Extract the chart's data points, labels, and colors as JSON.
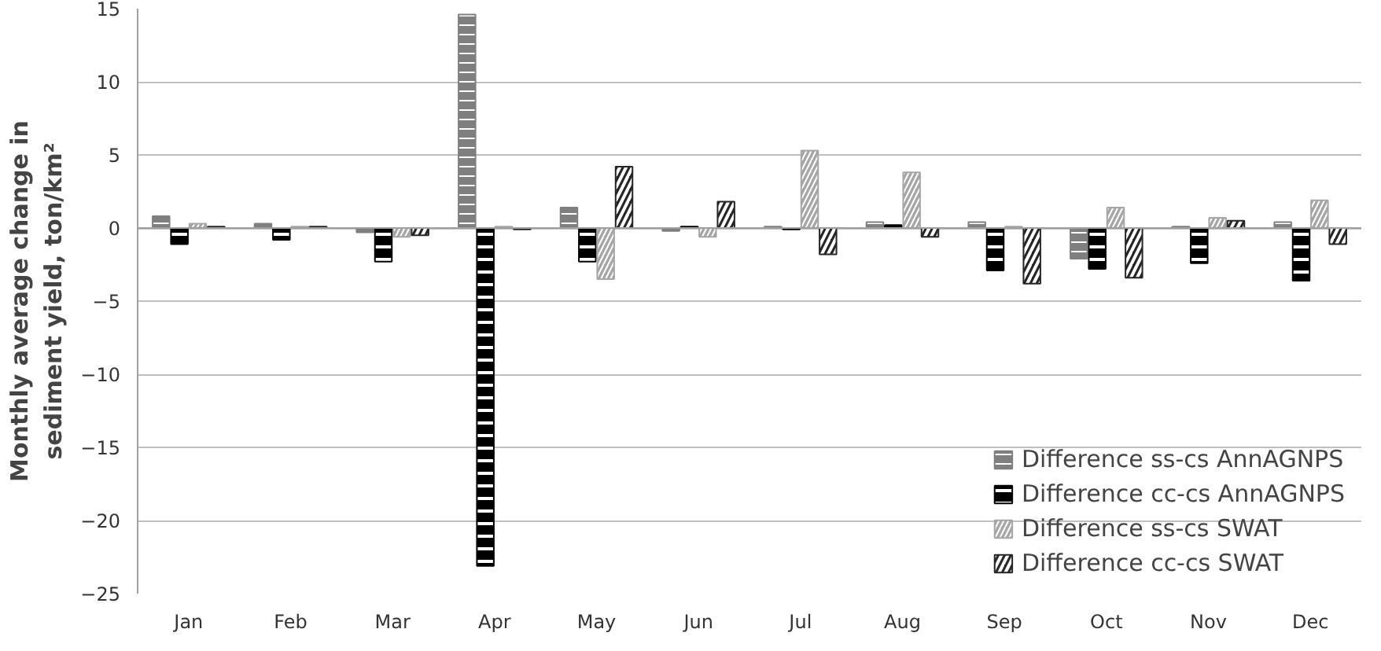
{
  "chart_data": {
    "type": "bar",
    "ylabel": "Monthly average change in\nsediment yield, ton/km²",
    "categories": [
      "Jan",
      "Feb",
      "Mar",
      "Apr",
      "May",
      "Jun",
      "Jul",
      "Aug",
      "Sep",
      "Oct",
      "Nov",
      "Dec"
    ],
    "series": [
      {
        "name": "Difference ss-cs AnnAGNPS",
        "color": "#7f7f7f",
        "values": [
          0.8,
          0.3,
          -0.3,
          14.6,
          1.4,
          -0.2,
          0.1,
          0.4,
          0.4,
          -2.1,
          0.1,
          0.4
        ]
      },
      {
        "name": "Difference cc-cs AnnAGNPS",
        "color": "#000000",
        "values": [
          -1.1,
          -0.8,
          -2.3,
          -23.1,
          -2.3,
          0.1,
          -0.1,
          0.2,
          -2.9,
          -2.8,
          -2.4,
          -3.6
        ]
      },
      {
        "name": "Difference ss-cs SWAT",
        "color": "#a6a6a6",
        "values": [
          0.3,
          0.1,
          -0.6,
          0.1,
          -3.5,
          -0.6,
          5.3,
          3.8,
          0.1,
          1.4,
          0.7,
          1.9
        ]
      },
      {
        "name": "Difference cc-cs SWAT",
        "color": "#262626",
        "values": [
          0.1,
          0.1,
          -0.5,
          -0.1,
          4.2,
          1.8,
          -1.8,
          -0.6,
          -3.8,
          -3.4,
          0.5,
          -1.1
        ]
      }
    ],
    "ylim": [
      -25,
      15
    ],
    "yticks": [
      -25,
      -20,
      -15,
      -10,
      -5,
      0,
      5,
      10,
      15
    ],
    "grid": "y",
    "legend": "bottom right"
  }
}
